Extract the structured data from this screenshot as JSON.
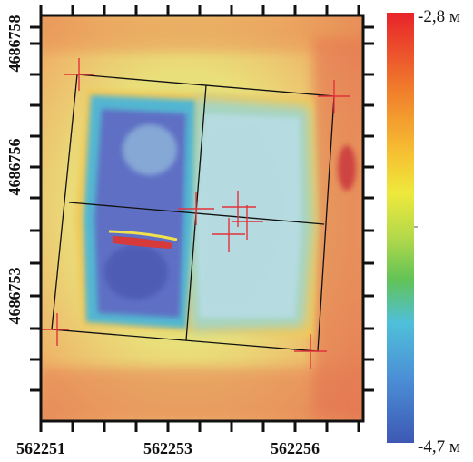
{
  "x_axis": {
    "tick_labels": [
      "562251",
      "562253",
      "562256"
    ]
  },
  "y_axis": {
    "tick_labels": [
      "4686758",
      "4686756",
      "4686753"
    ]
  },
  "colorbar": {
    "max_label": "-2,8 м",
    "min_label": "-4,7 м",
    "colors": [
      "#e8232b",
      "#f0792c",
      "#f6c232",
      "#eee93c",
      "#b5d94a",
      "#62c356",
      "#4fc0d9",
      "#4b8fd6",
      "#3d58b4"
    ]
  },
  "palette": {
    "background": "#eba366",
    "pit_floor": "#5e6fc4",
    "grid_lines": "#111111",
    "survey_marks": "#e3323a"
  }
}
